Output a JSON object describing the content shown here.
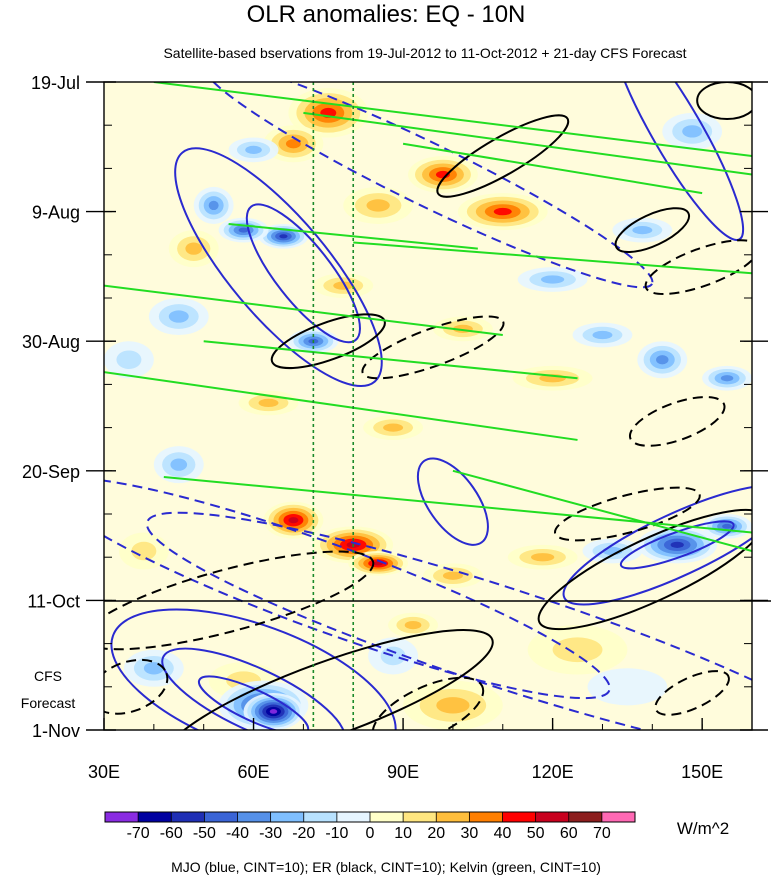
{
  "chart_data": {
    "type": "heatmap",
    "title": "OLR anomalies: EQ - 10N",
    "subtitle": "Satellite-based bservations from 19-Jul-2012 to 11-Oct-2012 + 21-day CFS Forecast",
    "x_axis": {
      "range": [
        30,
        160
      ],
      "ticks": [
        {
          "value": 30,
          "label": "30E"
        },
        {
          "value": 60,
          "label": "60E"
        },
        {
          "value": 90,
          "label": "90E"
        },
        {
          "value": 120,
          "label": "120E"
        },
        {
          "value": 150,
          "label": "150E"
        }
      ],
      "minor_step": 10
    },
    "y_axis": {
      "range_days": [
        0,
        105
      ],
      "direction": "time increases downward",
      "ticks": [
        {
          "day": 0,
          "label": "19-Jul"
        },
        {
          "day": 21,
          "label": "9-Aug"
        },
        {
          "day": 42,
          "label": "30-Aug"
        },
        {
          "day": 63,
          "label": "20-Sep"
        },
        {
          "day": 84,
          "label": "11-Oct"
        },
        {
          "day": 105,
          "label": "1-Nov"
        }
      ],
      "minor_step_days": 7
    },
    "forecast_divider_day": 84,
    "forecast_label_line1": "CFS",
    "forecast_label_line2": "Forecast",
    "reference_longitudes": [
      72,
      80
    ],
    "colorbar": {
      "levels": [
        "-70",
        "-60",
        "-50",
        "-40",
        "-30",
        "-20",
        "-10",
        "0",
        "10",
        "20",
        "30",
        "40",
        "50",
        "60",
        "70"
      ],
      "colors": [
        "#8a2be2",
        "#0000a0",
        "#1f2fb5",
        "#3a64d6",
        "#5590e8",
        "#7fbfff",
        "#b8e2ff",
        "#e6f5ff",
        "#ffffc8",
        "#ffe680",
        "#ffbe3c",
        "#ff7f00",
        "#ff0000",
        "#c8001e",
        "#8c1e1e",
        "#ff69b4"
      ],
      "units": "W/m^2"
    },
    "legend": "MJO (blue, CINT=10); ER (black, CINT=10); Kelvin (green, CINT=10)",
    "contour_series": [
      {
        "name": "MJO",
        "color": "#2a2ad0"
      },
      {
        "name": "ER",
        "color": "#000000"
      },
      {
        "name": "Kelvin",
        "color": "#22dd22"
      }
    ],
    "anomaly_features": [
      {
        "lon": 75,
        "day": 5,
        "value": 45,
        "rlon": 8,
        "rday": 4
      },
      {
        "lon": 68,
        "day": 10,
        "value": 40,
        "rlon": 6,
        "rday": 3
      },
      {
        "lon": 98,
        "day": 15,
        "value": 45,
        "rlon": 7,
        "rday": 3
      },
      {
        "lon": 110,
        "day": 21,
        "value": 50,
        "rlon": 9,
        "rday": 3
      },
      {
        "lon": 85,
        "day": 20,
        "value": 30,
        "rlon": 7,
        "rday": 3
      },
      {
        "lon": 78,
        "day": 33,
        "value": 30,
        "rlon": 6,
        "rday": 2
      },
      {
        "lon": 48,
        "day": 27,
        "value": 25,
        "rlon": 5,
        "rday": 3
      },
      {
        "lon": 102,
        "day": 40,
        "value": 30,
        "rlon": 6,
        "rday": 2
      },
      {
        "lon": 120,
        "day": 48,
        "value": 25,
        "rlon": 8,
        "rday": 2
      },
      {
        "lon": 63,
        "day": 52,
        "value": 25,
        "rlon": 6,
        "rday": 2
      },
      {
        "lon": 88,
        "day": 56,
        "value": 30,
        "rlon": 6,
        "rday": 2
      },
      {
        "lon": 68,
        "day": 71,
        "value": 55,
        "rlon": 6,
        "rday": 3
      },
      {
        "lon": 80,
        "day": 75,
        "value": 55,
        "rlon": 8,
        "rday": 3
      },
      {
        "lon": 85,
        "day": 78,
        "value": 55,
        "rlon": 6,
        "rday": 2
      },
      {
        "lon": 100,
        "day": 80,
        "value": 25,
        "rlon": 6,
        "rday": 2
      },
      {
        "lon": 118,
        "day": 77,
        "value": 25,
        "rlon": 7,
        "rday": 2
      },
      {
        "lon": 38,
        "day": 76,
        "value": 20,
        "rlon": 5,
        "rday": 3
      },
      {
        "lon": 92,
        "day": 88,
        "value": 25,
        "rlon": 5,
        "rday": 2
      },
      {
        "lon": 125,
        "day": 92,
        "value": 20,
        "rlon": 10,
        "rday": 4
      },
      {
        "lon": 58,
        "day": 97,
        "value": 20,
        "rlon": 7,
        "rday": 3
      },
      {
        "lon": 100,
        "day": 101,
        "value": 25,
        "rlon": 10,
        "rday": 4
      },
      {
        "lon": 60,
        "day": 11,
        "value": -30,
        "rlon": 5,
        "rday": 2
      },
      {
        "lon": 66,
        "day": 25,
        "value": -60,
        "rlon": 5,
        "rday": 2
      },
      {
        "lon": 58,
        "day": 24,
        "value": -50,
        "rlon": 5,
        "rday": 2
      },
      {
        "lon": 52,
        "day": 20,
        "value": -40,
        "rlon": 4,
        "rday": 3
      },
      {
        "lon": 72,
        "day": 42,
        "value": -45,
        "rlon": 5,
        "rday": 2
      },
      {
        "lon": 45,
        "day": 38,
        "value": -30,
        "rlon": 6,
        "rday": 3
      },
      {
        "lon": 120,
        "day": 32,
        "value": -30,
        "rlon": 7,
        "rday": 2
      },
      {
        "lon": 138,
        "day": 24,
        "value": -30,
        "rlon": 6,
        "rday": 2
      },
      {
        "lon": 142,
        "day": 45,
        "value": -40,
        "rlon": 5,
        "rday": 3
      },
      {
        "lon": 130,
        "day": 41,
        "value": -30,
        "rlon": 6,
        "rday": 2
      },
      {
        "lon": 155,
        "day": 48,
        "value": -35,
        "rlon": 5,
        "rday": 2
      },
      {
        "lon": 148,
        "day": 8,
        "value": -30,
        "rlon": 6,
        "rday": 3
      },
      {
        "lon": 35,
        "day": 45,
        "value": -20,
        "rlon": 5,
        "rday": 3
      },
      {
        "lon": 45,
        "day": 62,
        "value": -25,
        "rlon": 5,
        "rday": 3
      },
      {
        "lon": 145,
        "day": 75,
        "value": -60,
        "rlon": 8,
        "rday": 3
      },
      {
        "lon": 155,
        "day": 72,
        "value": -45,
        "rlon": 5,
        "rday": 2
      },
      {
        "lon": 132,
        "day": 76,
        "value": -30,
        "rlon": 6,
        "rday": 2
      },
      {
        "lon": 40,
        "day": 95,
        "value": -30,
        "rlon": 6,
        "rday": 3
      },
      {
        "lon": 62,
        "day": 101,
        "value": -60,
        "rlon": 9,
        "rday": 4
      },
      {
        "lon": 64,
        "day": 102,
        "value": -80,
        "rlon": 6,
        "rday": 3
      },
      {
        "lon": 88,
        "day": 93,
        "value": -15,
        "rlon": 5,
        "rday": 3
      },
      {
        "lon": 135,
        "day": 98,
        "value": -10,
        "rlon": 8,
        "rday": 3
      }
    ],
    "contours": [
      {
        "type": "MJO",
        "dashed": false,
        "lon": 65,
        "day": 30,
        "rlon": 30,
        "rday": 8,
        "angle": 50
      },
      {
        "type": "MJO",
        "dashed": false,
        "lon": 70,
        "day": 31,
        "rlon": 17,
        "rday": 4.5,
        "angle": 52
      },
      {
        "type": "MJO",
        "dashed": true,
        "lon": 95,
        "day": 15,
        "rlon": 50,
        "rday": 5,
        "angle": 26
      },
      {
        "type": "MJO",
        "dashed": false,
        "lon": 145,
        "day": 8,
        "rlon": 25,
        "rday": 4,
        "angle": 60
      },
      {
        "type": "MJO",
        "dashed": false,
        "lon": 100,
        "day": 68,
        "rlon": 10,
        "rday": 4,
        "angle": 55
      },
      {
        "type": "MJO",
        "dashed": false,
        "lon": 145,
        "day": 75,
        "rlon": 25,
        "rday": 5,
        "angle": -25
      },
      {
        "type": "MJO",
        "dashed": false,
        "lon": 145,
        "day": 75,
        "rlon": 12,
        "rday": 2,
        "angle": -20
      },
      {
        "type": "MJO",
        "dashed": true,
        "lon": 75,
        "day": 82,
        "rlon": 60,
        "rday": 7,
        "angle": 20
      },
      {
        "type": "MJO",
        "dashed": true,
        "lon": 110,
        "day": 90,
        "rlon": 75,
        "rday": 8,
        "angle": 18
      },
      {
        "type": "MJO",
        "dashed": false,
        "lon": 60,
        "day": 98,
        "rlon": 30,
        "rday": 10,
        "angle": 20
      },
      {
        "type": "MJO",
        "dashed": false,
        "lon": 60,
        "day": 100,
        "rlon": 20,
        "rday": 5,
        "angle": 25
      },
      {
        "type": "MJO",
        "dashed": false,
        "lon": 60,
        "day": 101,
        "rlon": 12,
        "rday": 2.5,
        "angle": 25
      },
      {
        "type": "ER",
        "dashed": false,
        "lon": 110,
        "day": 12,
        "rlon": 15,
        "rday": 3,
        "angle": -30
      },
      {
        "type": "ER",
        "dashed": false,
        "lon": 155,
        "day": 3,
        "rlon": 6,
        "rday": 3,
        "angle": 0
      },
      {
        "type": "ER",
        "dashed": false,
        "lon": 140,
        "day": 24,
        "rlon": 8,
        "rday": 2.5,
        "angle": -25
      },
      {
        "type": "ER",
        "dashed": true,
        "lon": 150,
        "day": 30,
        "rlon": 12,
        "rday": 3,
        "angle": -20
      },
      {
        "type": "ER",
        "dashed": true,
        "lon": 96,
        "day": 43,
        "rlon": 15,
        "rday": 3,
        "angle": -20
      },
      {
        "type": "ER",
        "dashed": false,
        "lon": 75,
        "day": 42,
        "rlon": 12,
        "rday": 3,
        "angle": -20
      },
      {
        "type": "ER",
        "dashed": true,
        "lon": 145,
        "day": 55,
        "rlon": 10,
        "rday": 3,
        "angle": -20
      },
      {
        "type": "ER",
        "dashed": false,
        "lon": 140,
        "day": 79,
        "rlon": 25,
        "rday": 5,
        "angle": -25
      },
      {
        "type": "ER",
        "dashed": true,
        "lon": 135,
        "day": 70,
        "rlon": 15,
        "rday": 3,
        "angle": -15
      },
      {
        "type": "ER",
        "dashed": true,
        "lon": 55,
        "day": 84,
        "rlon": 30,
        "rday": 5,
        "angle": -15
      },
      {
        "type": "ER",
        "dashed": true,
        "lon": 35,
        "day": 98,
        "rlon": 8,
        "rday": 4,
        "angle": -20
      },
      {
        "type": "ER",
        "dashed": false,
        "lon": 75,
        "day": 100,
        "rlon": 35,
        "rday": 6,
        "angle": -20
      },
      {
        "type": "ER",
        "dashed": true,
        "lon": 95,
        "day": 102,
        "rlon": 12,
        "rday": 4,
        "angle": -25
      },
      {
        "type": "ER",
        "dashed": true,
        "lon": 148,
        "day": 99,
        "rlon": 8,
        "rday": 2.5,
        "angle": -25
      },
      {
        "type": "Kelvin",
        "dashed": false,
        "lon0": 40,
        "day0": 0,
        "lon1": 160,
        "day1": 12
      },
      {
        "type": "Kelvin",
        "dashed": false,
        "lon0": 70,
        "day0": 5,
        "lon1": 160,
        "day1": 15
      },
      {
        "type": "Kelvin",
        "dashed": false,
        "lon0": 90,
        "day0": 10,
        "lon1": 150,
        "day1": 18
      },
      {
        "type": "Kelvin",
        "dashed": false,
        "lon0": 55,
        "day0": 23,
        "lon1": 105,
        "day1": 27
      },
      {
        "type": "Kelvin",
        "dashed": false,
        "lon0": 80,
        "day0": 26,
        "lon1": 160,
        "day1": 31
      },
      {
        "type": "Kelvin",
        "dashed": false,
        "lon0": 30,
        "day0": 33,
        "lon1": 110,
        "day1": 41
      },
      {
        "type": "Kelvin",
        "dashed": false,
        "lon0": 50,
        "day0": 42,
        "lon1": 125,
        "day1": 48
      },
      {
        "type": "Kelvin",
        "dashed": false,
        "lon0": 30,
        "day0": 47,
        "lon1": 125,
        "day1": 58
      },
      {
        "type": "Kelvin",
        "dashed": false,
        "lon0": 42,
        "day0": 64,
        "lon1": 160,
        "day1": 73
      },
      {
        "type": "Kelvin",
        "dashed": false,
        "lon0": 100,
        "day0": 63,
        "lon1": 160,
        "day1": 76
      }
    ]
  }
}
